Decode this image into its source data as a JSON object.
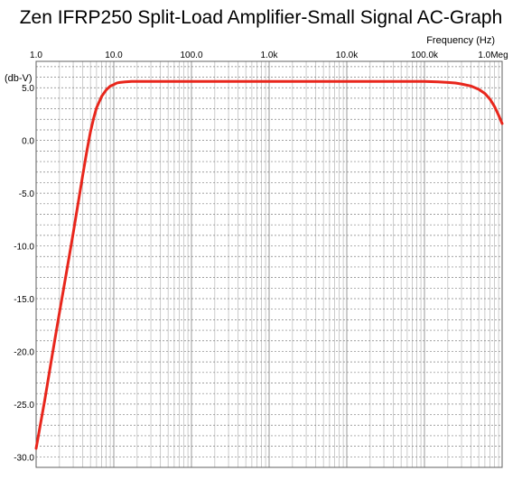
{
  "chart_data": {
    "type": "line",
    "title": "Zen IFRP250 Split-Load Amplifier-Small Signal AC-Graph",
    "xlabel": "Frequency  (Hz)",
    "ylabel": "(db-V)",
    "x_scale": "log",
    "xlim": [
      1,
      1000000
    ],
    "ylim": [
      -31,
      7.5
    ],
    "grid": true,
    "x_ticks": [
      {
        "value": 1,
        "label": "1.0"
      },
      {
        "value": 10,
        "label": "10.0"
      },
      {
        "value": 100,
        "label": "100.0"
      },
      {
        "value": 1000,
        "label": "1.0k"
      },
      {
        "value": 10000,
        "label": "10.0k"
      },
      {
        "value": 100000,
        "label": "100.0k"
      },
      {
        "value": 1000000,
        "label": "1.0Meg"
      }
    ],
    "y_ticks": [
      {
        "value": 5,
        "label": "5.0"
      },
      {
        "value": 0,
        "label": "0.0"
      },
      {
        "value": -5,
        "label": "-5.0"
      },
      {
        "value": -10,
        "label": "-10.0"
      },
      {
        "value": -15,
        "label": "-15.0"
      },
      {
        "value": -20,
        "label": "-20.0"
      },
      {
        "value": -25,
        "label": "-25.0"
      },
      {
        "value": -30,
        "label": "-30.0"
      }
    ],
    "series": [
      {
        "color": "#e8261c",
        "x": [
          1,
          1.3,
          1.6,
          2,
          2.5,
          3,
          3.5,
          4,
          4.5,
          5,
          5.5,
          6,
          7,
          8,
          9,
          10,
          11,
          12,
          14,
          17,
          20,
          50,
          100,
          1000,
          10000,
          50000,
          100000,
          150000,
          200000,
          250000,
          300000,
          400000,
          500000,
          600000,
          700000,
          800000,
          900000,
          1000000
        ],
        "y": [
          -29.2,
          -24.5,
          -20.5,
          -16.3,
          -12.2,
          -8.8,
          -5.8,
          -3.2,
          -1.0,
          0.8,
          2.1,
          3.1,
          4.2,
          4.8,
          5.15,
          5.3,
          5.45,
          5.5,
          5.55,
          5.6,
          5.6,
          5.6,
          5.6,
          5.6,
          5.6,
          5.6,
          5.6,
          5.55,
          5.5,
          5.45,
          5.35,
          5.15,
          4.85,
          4.45,
          3.9,
          3.2,
          2.4,
          1.6
        ]
      }
    ]
  }
}
